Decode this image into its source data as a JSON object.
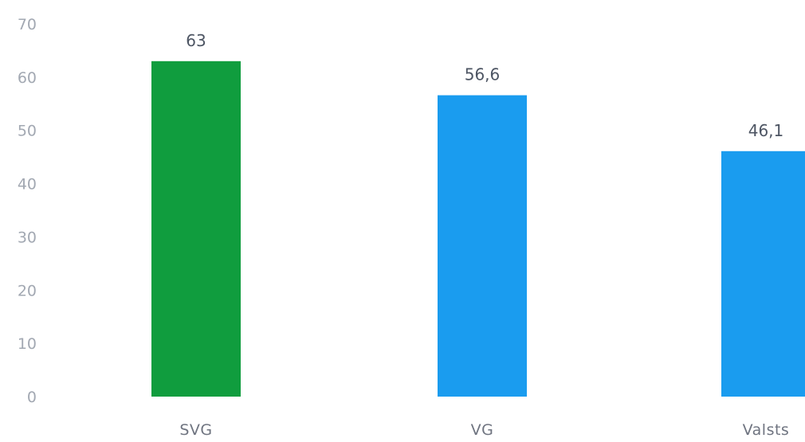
{
  "chart_data": {
    "type": "bar",
    "categories": [
      "SVG",
      "VG",
      "Valsts"
    ],
    "values": [
      63,
      56.6,
      46.1
    ],
    "data_labels": [
      "63",
      "56,6",
      "46,1"
    ],
    "colors": [
      "#109d3e",
      "#1a9cef",
      "#1a9cef"
    ],
    "title": "",
    "xlabel": "",
    "ylabel": "",
    "ylim": [
      0,
      70
    ],
    "yticks": [
      0,
      10,
      20,
      30,
      40,
      50,
      60,
      70
    ],
    "grid": false,
    "legend": "none"
  }
}
